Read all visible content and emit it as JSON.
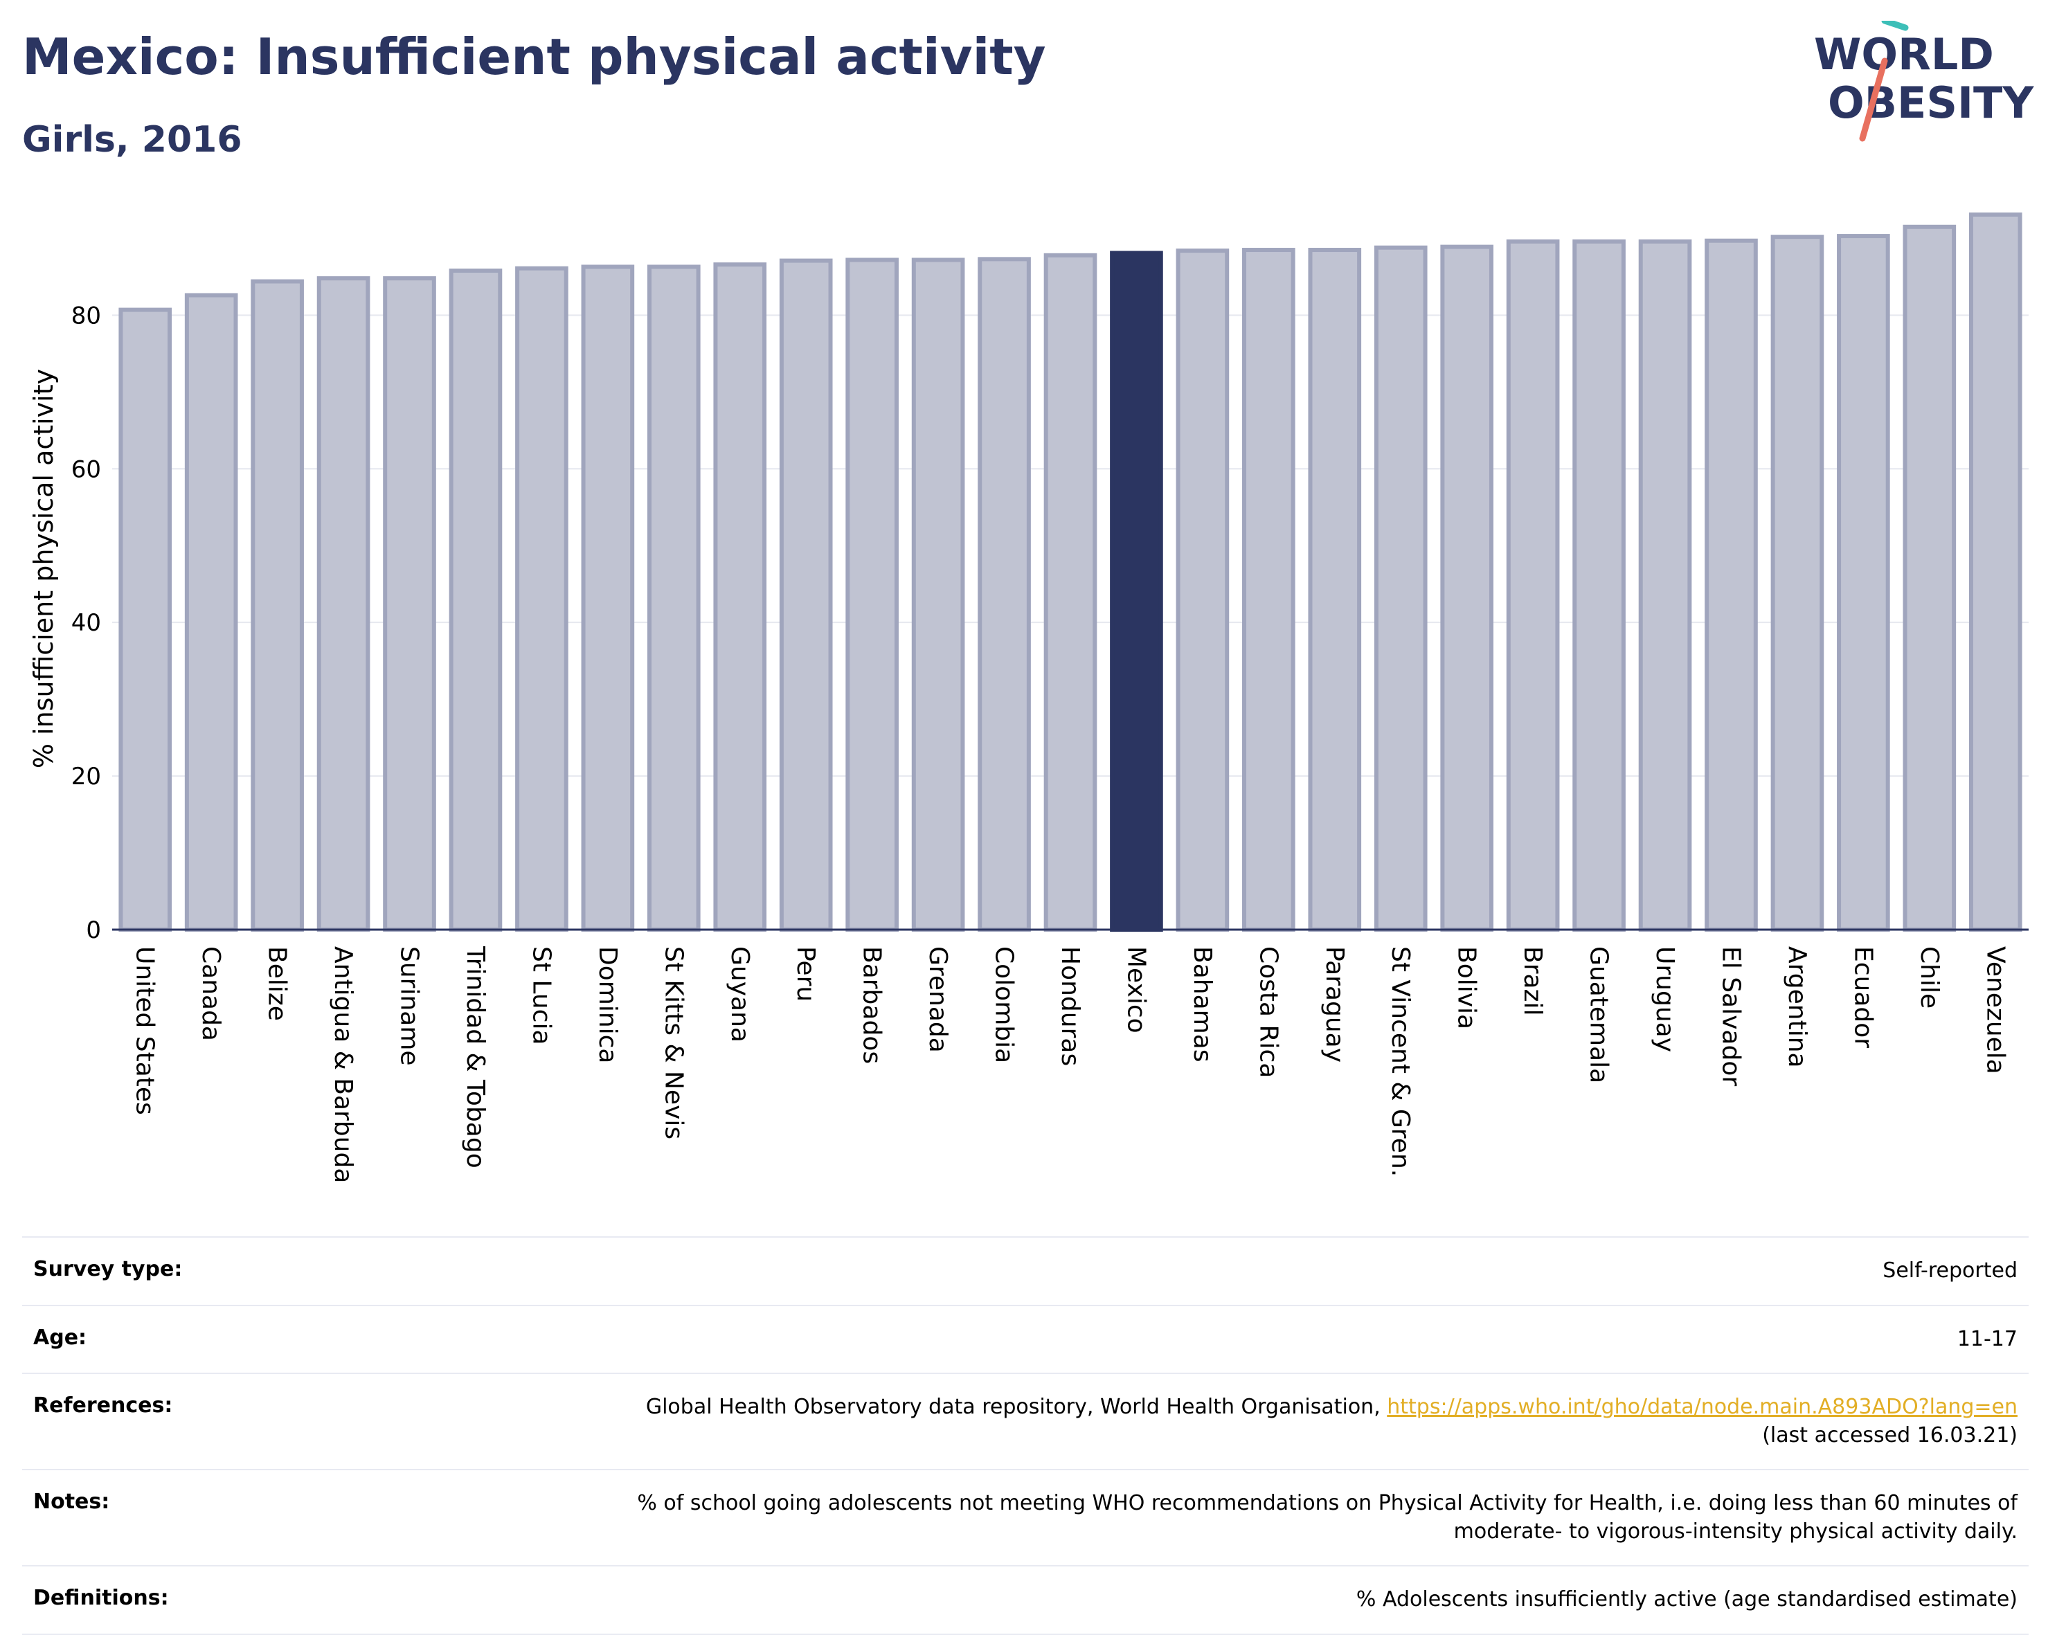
{
  "header": {
    "title": "Mexico: Insufficient physical activity",
    "subtitle": "Girls, 2016"
  },
  "logo": {
    "line1": "WORLD",
    "line2": "OBESITY"
  },
  "colors": {
    "highlight": "#2b3561",
    "bar_fill": "#c0c3d2",
    "bar_stroke": "#a0a5bd",
    "text": "#2b3561",
    "link": "#e2ae25",
    "logo_teal": "#3dbfb8",
    "logo_red": "#e8705f"
  },
  "chart_data": {
    "type": "bar",
    "ylabel": "% insufficient physical activity",
    "ylim": [
      0,
      94
    ],
    "yticks": [
      0,
      20,
      40,
      60,
      80
    ],
    "grid": true,
    "highlight": "Mexico",
    "categories": [
      "United States",
      "Canada",
      "Belize",
      "Antigua & Barbuda",
      "Suriname",
      "Trinidad & Tobago",
      "St Lucia",
      "Dominica",
      "St Kitts & Nevis",
      "Guyana",
      "Peru",
      "Barbados",
      "Grenada",
      "Colombia",
      "Honduras",
      "Mexico",
      "Bahamas",
      "Costa Rica",
      "Paraguay",
      "St Vincent & Gren.",
      "Bolivia",
      "Brazil",
      "Guatemala",
      "Uruguay",
      "El Salvador",
      "Argentina",
      "Ecuador",
      "Chile",
      "Venezuela"
    ],
    "values": [
      80.7,
      82.6,
      84.4,
      84.8,
      84.8,
      85.8,
      86.1,
      86.3,
      86.3,
      86.6,
      87.1,
      87.2,
      87.2,
      87.3,
      87.8,
      88.1,
      88.4,
      88.5,
      88.5,
      88.8,
      88.9,
      89.6,
      89.6,
      89.6,
      89.7,
      90.2,
      90.3,
      91.5,
      93.1
    ]
  },
  "info": {
    "survey_type": {
      "label": "Survey type:",
      "value": "Self-reported"
    },
    "age": {
      "label": "Age:",
      "value": "11-17"
    },
    "references": {
      "label": "References:",
      "text": "Global Health Observatory data repository, World Health Organisation, ",
      "link": "https://apps.who.int/gho/data/node.main.A893ADO?lang=en",
      "accessed": "(last accessed 16.03.21)"
    },
    "notes": {
      "label": "Notes:",
      "line1": "% of school going adolescents not meeting WHO recommendations on Physical Activity for Health, i.e. doing less than 60 minutes of",
      "line2": "moderate- to vigorous-intensity physical activity daily."
    },
    "definitions": {
      "label": "Definitions:",
      "value": "% Adolescents insufficiently active (age standardised estimate)"
    }
  }
}
